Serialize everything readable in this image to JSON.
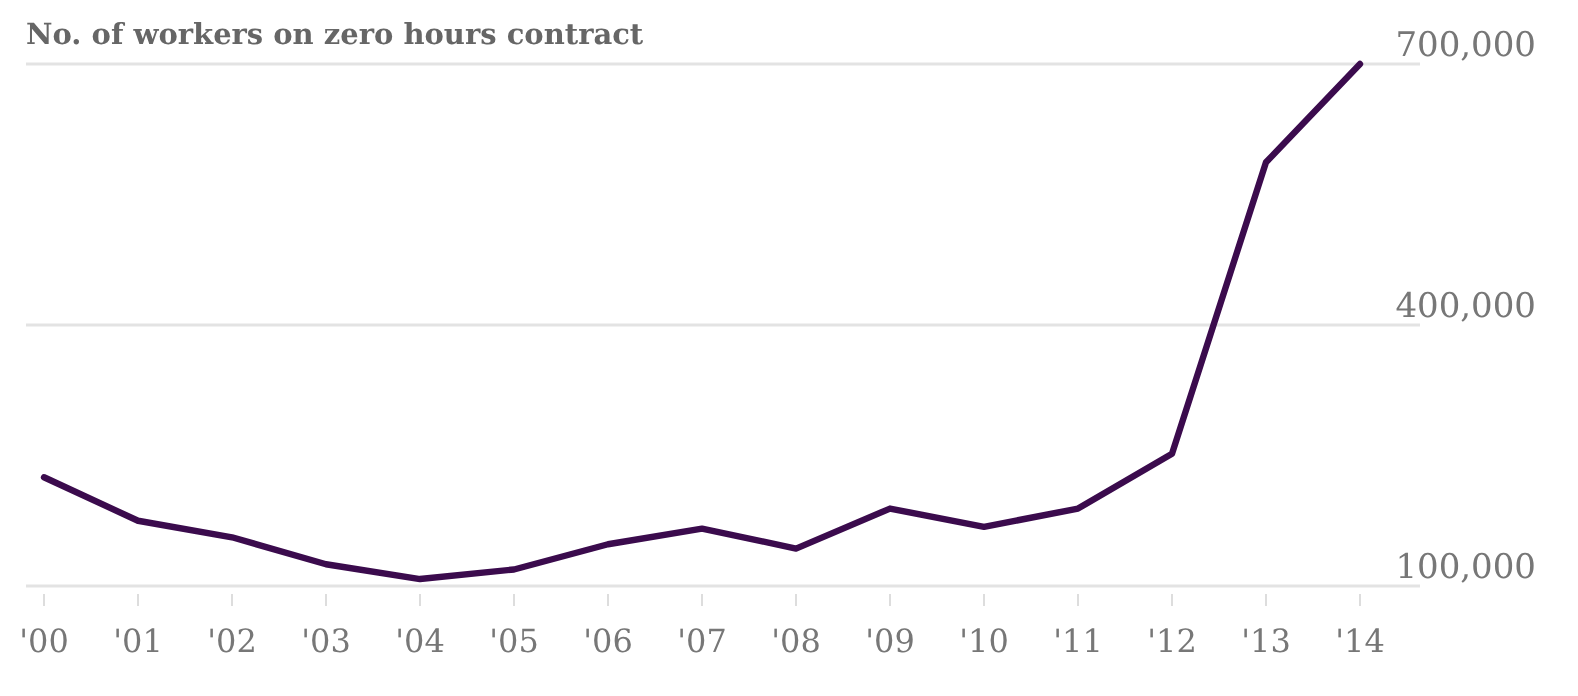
{
  "chart_data": {
    "type": "line",
    "title": "No. of workers on zero hours contract",
    "categories": [
      "'00",
      "'01",
      "'02",
      "'03",
      "'04",
      "'05",
      "'06",
      "'07",
      "'08",
      "'09",
      "'10",
      "'11",
      "'12",
      "'13",
      "'14"
    ],
    "series": [
      {
        "color": "#3b0b4d",
        "values": [
          225000,
          175000,
          156000,
          125000,
          108000,
          119000,
          148000,
          166000,
          143000,
          189000,
          168000,
          189000,
          252000,
          587000,
          700000
        ]
      }
    ],
    "ylim": [
      100000,
      700000
    ],
    "yticks": [
      {
        "value": 100000,
        "label": "100,000"
      },
      {
        "value": 400000,
        "label": "400,000"
      },
      {
        "value": 700000,
        "label": "700,000"
      }
    ],
    "grid": "y"
  }
}
